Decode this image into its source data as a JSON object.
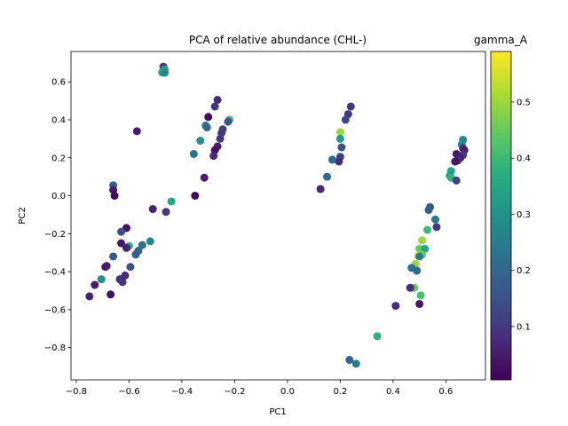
{
  "chart_data": {
    "type": "scatter",
    "title": "PCA of relative abundance (CHL-)",
    "xlabel": "PC1",
    "ylabel": "PC2",
    "xlim": [
      -0.82,
      0.75
    ],
    "ylim": [
      -0.97,
      0.76
    ],
    "xticks": [
      -0.8,
      -0.6,
      -0.4,
      -0.2,
      0.0,
      0.2,
      0.4,
      0.6
    ],
    "xtick_labels": [
      "−0.8",
      "−0.6",
      "−0.4",
      "−0.2",
      "0.0",
      "0.2",
      "0.4",
      "0.6"
    ],
    "yticks": [
      -0.8,
      -0.6,
      -0.4,
      -0.2,
      0.0,
      0.2,
      0.4,
      0.6
    ],
    "ytick_labels": [
      "−0.8",
      "−0.6",
      "−0.4",
      "−0.2",
      "0.0",
      "0.2",
      "0.4",
      "0.6"
    ],
    "grid": false,
    "colormap": "viridis",
    "colorbar": {
      "label": "gamma_A",
      "range": [
        0.005,
        0.59
      ],
      "ticks": [
        0.1,
        0.2,
        0.3,
        0.4,
        0.5
      ],
      "tick_labels": [
        "0.1",
        "0.2",
        "0.3",
        "0.4",
        "0.5"
      ]
    },
    "points": [
      {
        "x": -0.47,
        "y": 0.68,
        "c": 0.1
      },
      {
        "x": -0.465,
        "y": 0.665,
        "c": 0.35
      },
      {
        "x": -0.47,
        "y": 0.655,
        "c": 0.3
      },
      {
        "x": -0.475,
        "y": 0.65,
        "c": 0.35
      },
      {
        "x": -0.465,
        "y": 0.648,
        "c": 0.28
      },
      {
        "x": -0.265,
        "y": 0.505,
        "c": 0.08
      },
      {
        "x": -0.275,
        "y": 0.47,
        "c": 0.1
      },
      {
        "x": -0.3,
        "y": 0.415,
        "c": 0.02
      },
      {
        "x": -0.22,
        "y": 0.4,
        "c": 0.4
      },
      {
        "x": -0.225,
        "y": 0.39,
        "c": 0.15
      },
      {
        "x": -0.31,
        "y": 0.37,
        "c": 0.25
      },
      {
        "x": -0.305,
        "y": 0.36,
        "c": 0.2
      },
      {
        "x": -0.245,
        "y": 0.35,
        "c": 0.12
      },
      {
        "x": -0.25,
        "y": 0.33,
        "c": 0.1
      },
      {
        "x": -0.33,
        "y": 0.29,
        "c": 0.3
      },
      {
        "x": -0.255,
        "y": 0.3,
        "c": 0.1
      },
      {
        "x": -0.265,
        "y": 0.26,
        "c": 0.05
      },
      {
        "x": -0.275,
        "y": 0.24,
        "c": 0.03
      },
      {
        "x": -0.28,
        "y": 0.21,
        "c": 0.08
      },
      {
        "x": -0.355,
        "y": 0.22,
        "c": 0.22
      },
      {
        "x": -0.315,
        "y": 0.095,
        "c": 0.05
      },
      {
        "x": -0.57,
        "y": 0.34,
        "c": 0.05
      },
      {
        "x": -0.35,
        "y": 0.0,
        "c": 0.02
      },
      {
        "x": -0.44,
        "y": -0.03,
        "c": 0.35
      },
      {
        "x": -0.51,
        "y": -0.07,
        "c": 0.06
      },
      {
        "x": -0.46,
        "y": -0.085,
        "c": 0.1
      },
      {
        "x": -0.66,
        "y": 0.055,
        "c": 0.18
      },
      {
        "x": -0.66,
        "y": 0.03,
        "c": 0.05
      },
      {
        "x": -0.655,
        "y": 0.0,
        "c": 0.02
      },
      {
        "x": -0.61,
        "y": -0.17,
        "c": 0.03
      },
      {
        "x": -0.63,
        "y": -0.19,
        "c": 0.15
      },
      {
        "x": -0.63,
        "y": -0.25,
        "c": 0.04
      },
      {
        "x": -0.6,
        "y": -0.265,
        "c": 0.38
      },
      {
        "x": -0.61,
        "y": -0.275,
        "c": 0.06
      },
      {
        "x": -0.55,
        "y": -0.26,
        "c": 0.22
      },
      {
        "x": -0.52,
        "y": -0.24,
        "c": 0.28
      },
      {
        "x": -0.565,
        "y": -0.29,
        "c": 0.2
      },
      {
        "x": -0.575,
        "y": -0.31,
        "c": 0.18
      },
      {
        "x": -0.66,
        "y": -0.32,
        "c": 0.17
      },
      {
        "x": -0.685,
        "y": -0.37,
        "c": 0.04
      },
      {
        "x": -0.69,
        "y": -0.375,
        "c": 0.05
      },
      {
        "x": -0.595,
        "y": -0.375,
        "c": 0.15
      },
      {
        "x": -0.615,
        "y": -0.42,
        "c": 0.07
      },
      {
        "x": -0.635,
        "y": -0.44,
        "c": 0.08
      },
      {
        "x": -0.625,
        "y": -0.455,
        "c": 0.1
      },
      {
        "x": -0.705,
        "y": -0.44,
        "c": 0.3
      },
      {
        "x": -0.73,
        "y": -0.47,
        "c": 0.05
      },
      {
        "x": -0.67,
        "y": -0.52,
        "c": 0.03
      },
      {
        "x": -0.75,
        "y": -0.53,
        "c": 0.06
      },
      {
        "x": 0.24,
        "y": 0.47,
        "c": 0.1
      },
      {
        "x": 0.23,
        "y": 0.43,
        "c": 0.1
      },
      {
        "x": 0.22,
        "y": 0.4,
        "c": 0.12
      },
      {
        "x": 0.2,
        "y": 0.335,
        "c": 0.5
      },
      {
        "x": 0.2,
        "y": 0.3,
        "c": 0.32
      },
      {
        "x": 0.205,
        "y": 0.255,
        "c": 0.15
      },
      {
        "x": 0.2,
        "y": 0.205,
        "c": 0.12
      },
      {
        "x": 0.195,
        "y": 0.18,
        "c": 0.08
      },
      {
        "x": 0.17,
        "y": 0.19,
        "c": 0.2
      },
      {
        "x": 0.15,
        "y": 0.1,
        "c": 0.2
      },
      {
        "x": 0.125,
        "y": 0.035,
        "c": 0.07
      },
      {
        "x": 0.665,
        "y": 0.295,
        "c": 0.28
      },
      {
        "x": 0.66,
        "y": 0.27,
        "c": 0.28
      },
      {
        "x": 0.665,
        "y": 0.25,
        "c": 0.08
      },
      {
        "x": 0.67,
        "y": 0.24,
        "c": 0.05
      },
      {
        "x": 0.64,
        "y": 0.22,
        "c": 0.04
      },
      {
        "x": 0.665,
        "y": 0.215,
        "c": 0.1
      },
      {
        "x": 0.655,
        "y": 0.2,
        "c": 0.06
      },
      {
        "x": 0.645,
        "y": 0.185,
        "c": 0.08
      },
      {
        "x": 0.635,
        "y": 0.18,
        "c": 0.04
      },
      {
        "x": 0.62,
        "y": 0.13,
        "c": 0.35
      },
      {
        "x": 0.615,
        "y": 0.105,
        "c": 0.32
      },
      {
        "x": 0.62,
        "y": 0.095,
        "c": 0.38
      },
      {
        "x": 0.64,
        "y": 0.08,
        "c": 0.12
      },
      {
        "x": 0.54,
        "y": -0.06,
        "c": 0.15
      },
      {
        "x": 0.535,
        "y": -0.075,
        "c": 0.18
      },
      {
        "x": 0.56,
        "y": -0.125,
        "c": 0.25
      },
      {
        "x": 0.565,
        "y": -0.165,
        "c": 0.1
      },
      {
        "x": 0.53,
        "y": -0.18,
        "c": 0.4
      },
      {
        "x": 0.51,
        "y": -0.235,
        "c": 0.5
      },
      {
        "x": 0.5,
        "y": -0.28,
        "c": 0.45
      },
      {
        "x": 0.52,
        "y": -0.28,
        "c": 0.35
      },
      {
        "x": 0.495,
        "y": -0.315,
        "c": 0.55
      },
      {
        "x": 0.51,
        "y": -0.31,
        "c": 0.45
      },
      {
        "x": 0.5,
        "y": -0.32,
        "c": 0.25
      },
      {
        "x": 0.485,
        "y": -0.36,
        "c": 0.5
      },
      {
        "x": 0.47,
        "y": -0.38,
        "c": 0.22
      },
      {
        "x": 0.49,
        "y": -0.395,
        "c": 0.2
      },
      {
        "x": 0.48,
        "y": -0.485,
        "c": 0.45
      },
      {
        "x": 0.465,
        "y": -0.485,
        "c": 0.08
      },
      {
        "x": 0.505,
        "y": -0.525,
        "c": 0.42
      },
      {
        "x": 0.5,
        "y": -0.57,
        "c": 0.04
      },
      {
        "x": 0.41,
        "y": -0.58,
        "c": 0.08
      },
      {
        "x": 0.34,
        "y": -0.74,
        "c": 0.38
      },
      {
        "x": 0.235,
        "y": -0.865,
        "c": 0.2
      },
      {
        "x": 0.26,
        "y": -0.885,
        "c": 0.25
      }
    ]
  }
}
